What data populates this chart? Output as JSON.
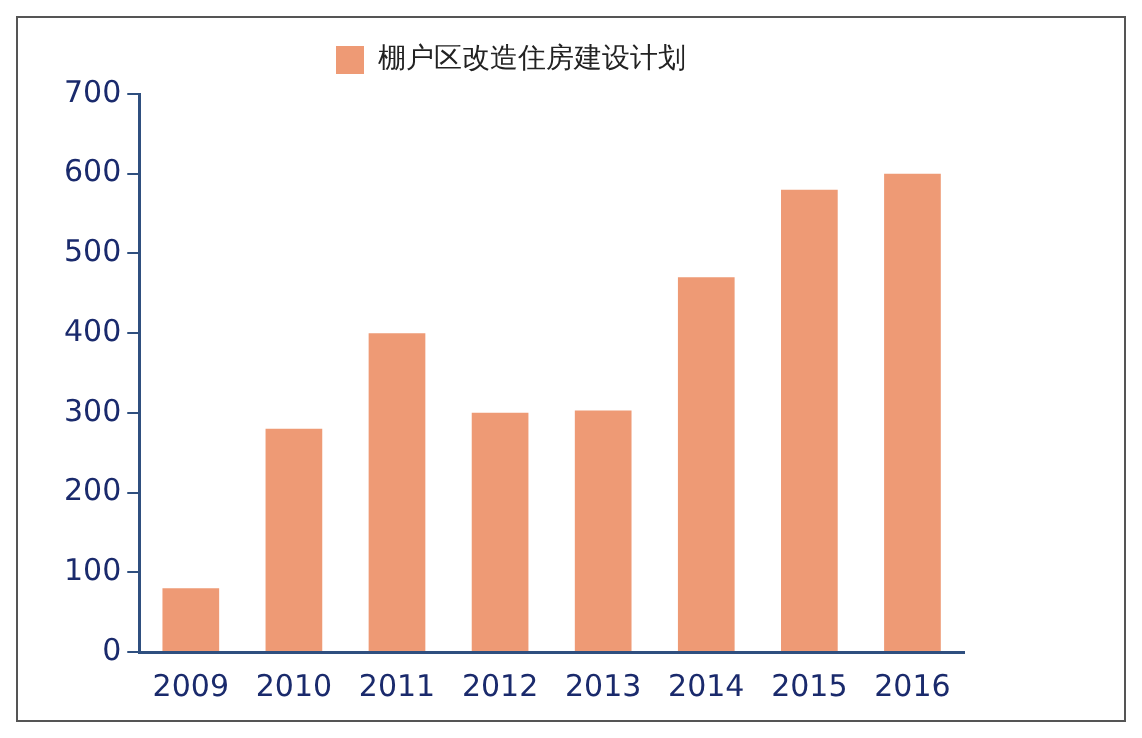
{
  "chart_data": {
    "type": "bar",
    "categories": [
      "2009",
      "2010",
      "2011",
      "2012",
      "2013",
      "2014",
      "2015",
      "2016"
    ],
    "series": [
      {
        "name": "棚户区改造住房建设计划",
        "color": "#ee9a75",
        "values": [
          80,
          280,
          400,
          300,
          303,
          470,
          580,
          600
        ]
      }
    ],
    "ylim": [
      0,
      700
    ],
    "yticks": [
      0,
      100,
      200,
      300,
      400,
      500,
      600,
      700
    ],
    "grid": false,
    "legend": "top"
  }
}
